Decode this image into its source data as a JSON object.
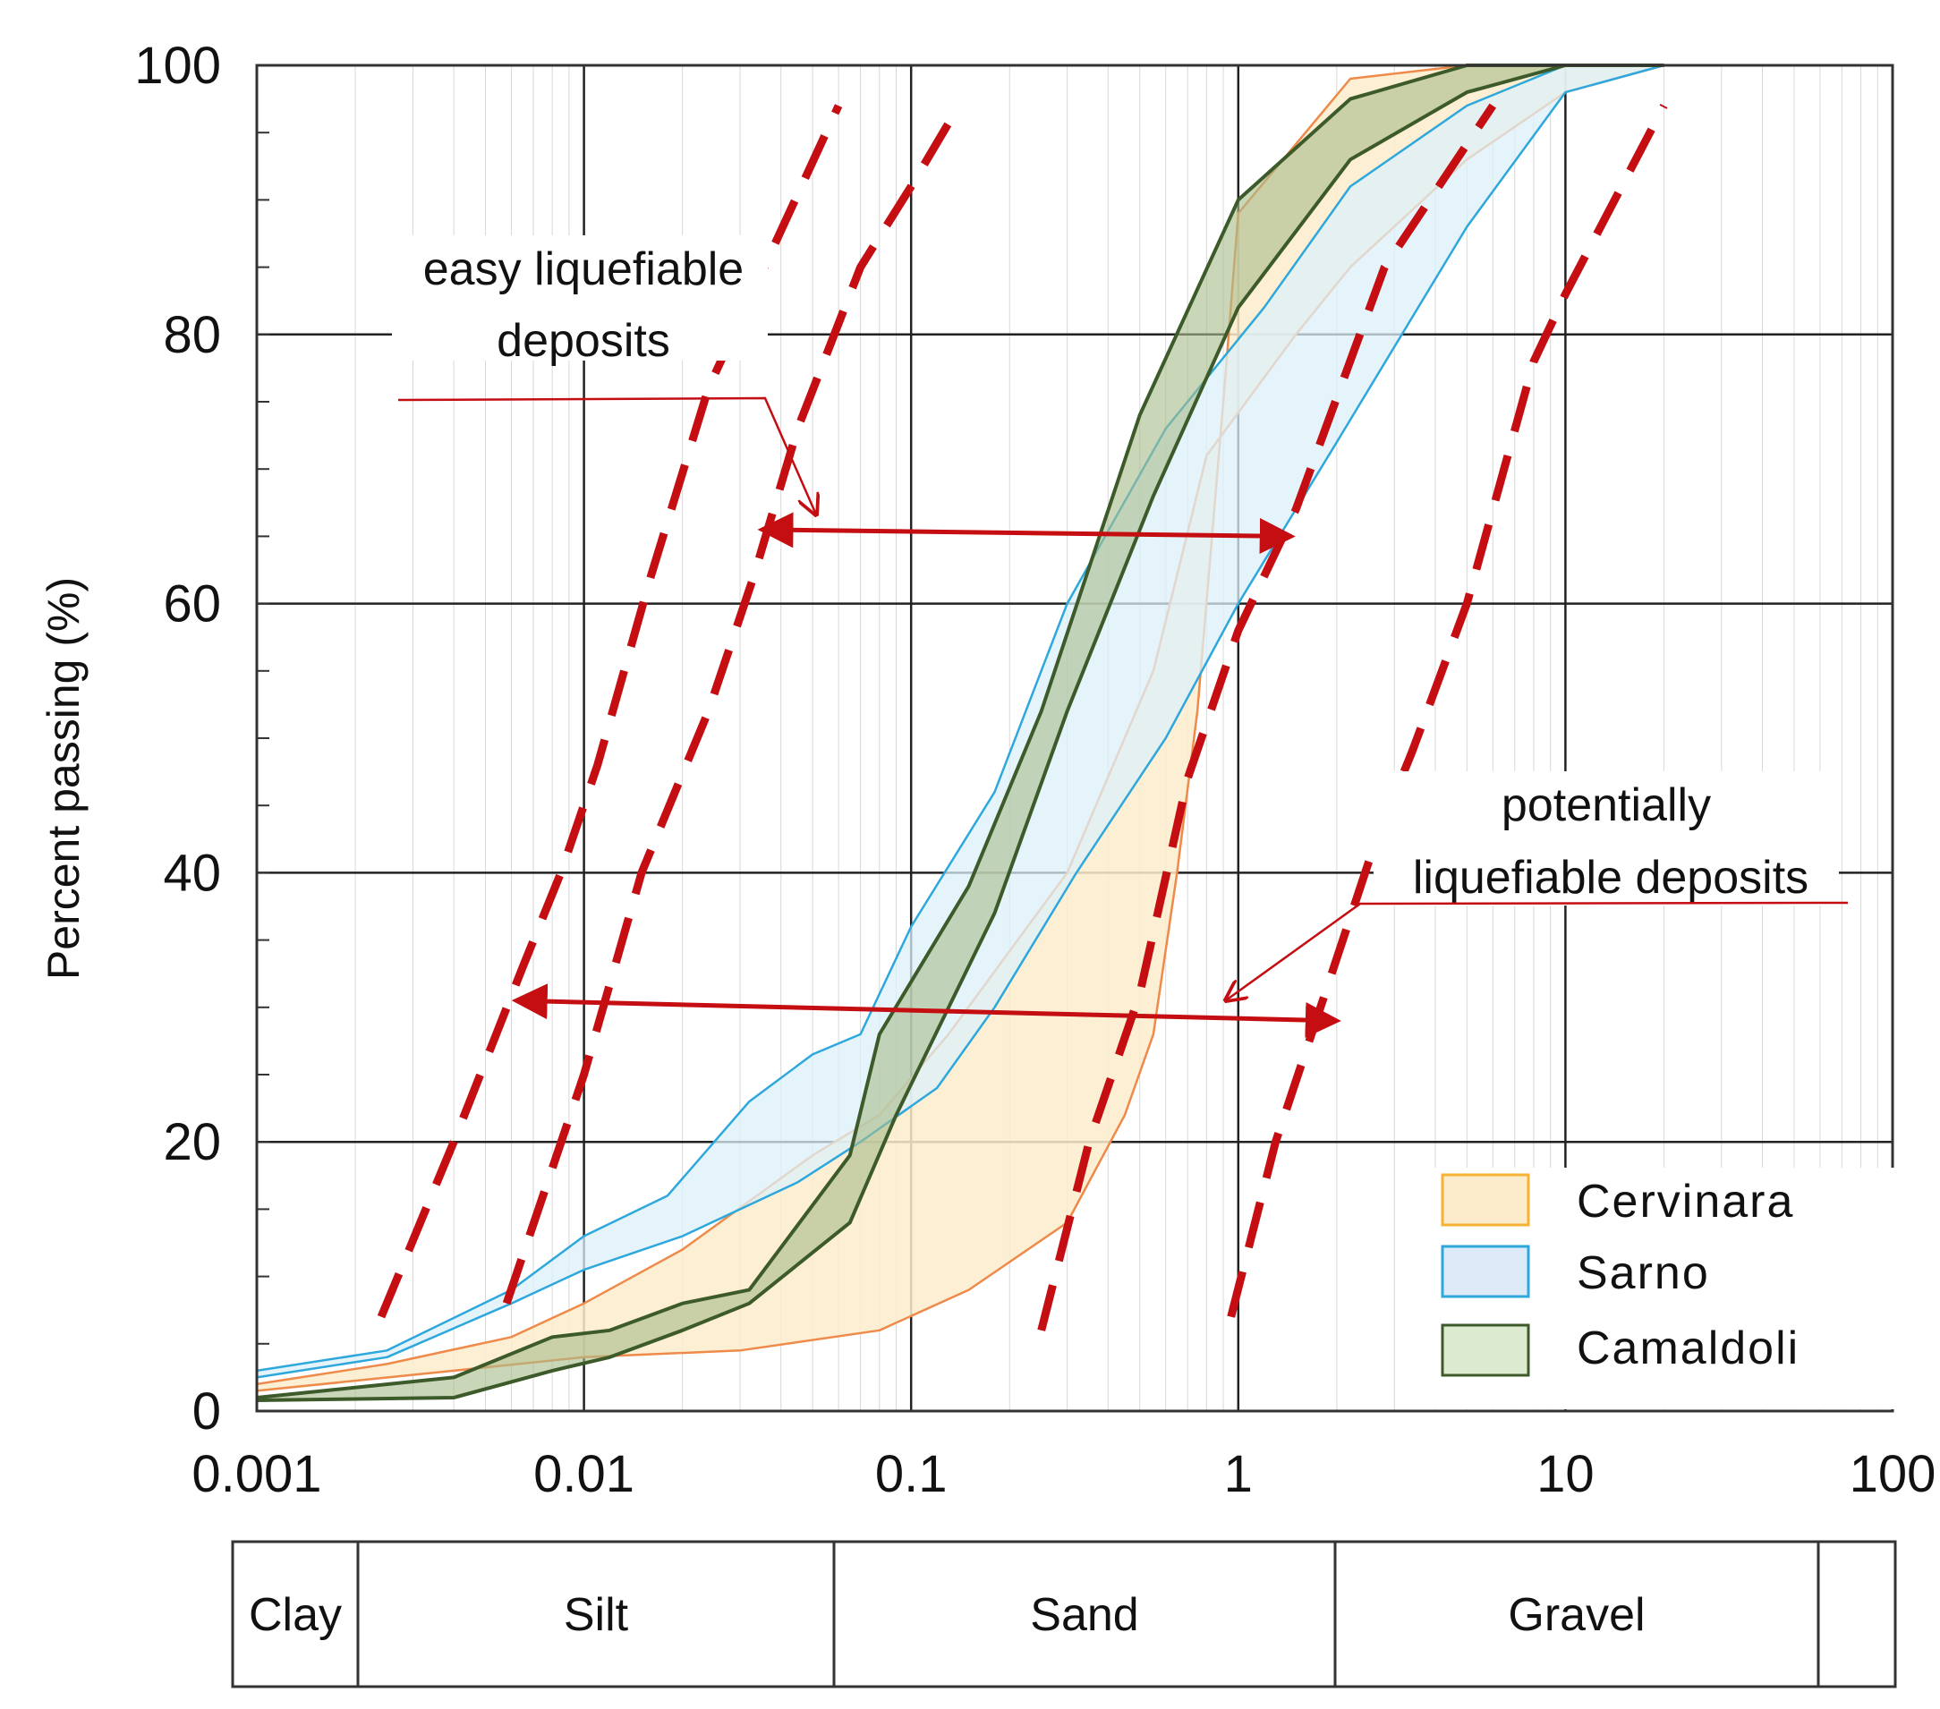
{
  "chart_data": {
    "type": "area",
    "title": "",
    "xlabel": "",
    "ylabel": "Percent  passing  (%)",
    "xscale": "log",
    "xlim": [
      0.001,
      100
    ],
    "ylim": [
      0,
      100
    ],
    "x_ticks": [
      "0.001",
      "0.01",
      "0.1",
      "1",
      "10",
      "100"
    ],
    "y_ticks": [
      "0",
      "20",
      "40",
      "60",
      "80",
      "100"
    ],
    "grid": true,
    "legend_position": "bottom-right",
    "colors": {
      "cervinara_line": "#ee8a4a",
      "cervinara_fill": "#fdeccb",
      "sarno_line": "#2ea8dc",
      "sarno_fill": "#dcf0fa",
      "camaldoli_line": "#3d5b2a",
      "camaldoli_fill": "#a9bd8c",
      "boundary": "#c40e12",
      "arrow": "#c40e12"
    },
    "series": [
      {
        "name": "Cervinara",
        "fine_edge": [
          [
            0.001,
            2
          ],
          [
            0.0025,
            3.5
          ],
          [
            0.006,
            5.5
          ],
          [
            0.01,
            8
          ],
          [
            0.02,
            12
          ],
          [
            0.05,
            19
          ],
          [
            0.08,
            22
          ],
          [
            0.13,
            28
          ],
          [
            0.3,
            40
          ],
          [
            0.55,
            55
          ],
          [
            0.8,
            71
          ],
          [
            1.5,
            80
          ],
          [
            2.2,
            85
          ],
          [
            5,
            93
          ],
          [
            10,
            98
          ],
          [
            20,
            100
          ]
        ],
        "coarse_edge": [
          [
            0.001,
            1.5
          ],
          [
            0.004,
            3
          ],
          [
            0.01,
            4
          ],
          [
            0.03,
            4.5
          ],
          [
            0.08,
            6
          ],
          [
            0.15,
            9
          ],
          [
            0.3,
            14
          ],
          [
            0.45,
            22
          ],
          [
            0.55,
            28
          ],
          [
            0.65,
            40
          ],
          [
            0.75,
            52
          ],
          [
            0.9,
            75
          ],
          [
            1.0,
            89
          ],
          [
            2.2,
            99
          ],
          [
            5,
            100
          ],
          [
            20,
            100
          ]
        ]
      },
      {
        "name": "Sarno",
        "fine_edge": [
          [
            0.001,
            3
          ],
          [
            0.0025,
            4.5
          ],
          [
            0.006,
            9
          ],
          [
            0.01,
            13
          ],
          [
            0.018,
            16
          ],
          [
            0.032,
            23
          ],
          [
            0.05,
            26.5
          ],
          [
            0.07,
            28
          ],
          [
            0.1,
            36
          ],
          [
            0.18,
            46
          ],
          [
            0.3,
            60
          ],
          [
            0.6,
            73
          ],
          [
            1.2,
            82
          ],
          [
            2.2,
            91
          ],
          [
            5,
            97
          ],
          [
            10,
            100
          ],
          [
            20,
            100
          ]
        ],
        "coarse_edge": [
          [
            0.001,
            2.5
          ],
          [
            0.0025,
            4
          ],
          [
            0.006,
            8
          ],
          [
            0.01,
            10.5
          ],
          [
            0.02,
            13
          ],
          [
            0.045,
            17
          ],
          [
            0.07,
            20
          ],
          [
            0.12,
            24
          ],
          [
            0.18,
            30
          ],
          [
            0.32,
            40
          ],
          [
            0.6,
            50
          ],
          [
            1,
            60
          ],
          [
            2,
            72
          ],
          [
            5,
            88
          ],
          [
            10,
            98
          ],
          [
            20,
            100
          ]
        ]
      },
      {
        "name": "Camaldoli",
        "fine_edge": [
          [
            0.001,
            1
          ],
          [
            0.004,
            2.5
          ],
          [
            0.008,
            5.5
          ],
          [
            0.012,
            6
          ],
          [
            0.02,
            8
          ],
          [
            0.032,
            9
          ],
          [
            0.065,
            19
          ],
          [
            0.08,
            28
          ],
          [
            0.15,
            39
          ],
          [
            0.25,
            52
          ],
          [
            0.5,
            74
          ],
          [
            1,
            90
          ],
          [
            2.2,
            97.5
          ],
          [
            5,
            100
          ],
          [
            20,
            100
          ]
        ],
        "coarse_edge": [
          [
            0.001,
            0.8
          ],
          [
            0.004,
            1
          ],
          [
            0.008,
            3
          ],
          [
            0.012,
            4
          ],
          [
            0.02,
            6
          ],
          [
            0.032,
            8
          ],
          [
            0.065,
            14
          ],
          [
            0.09,
            22
          ],
          [
            0.18,
            37
          ],
          [
            0.3,
            52
          ],
          [
            0.55,
            68
          ],
          [
            1,
            82
          ],
          [
            2.2,
            93
          ],
          [
            5,
            98
          ],
          [
            10,
            100
          ],
          [
            20,
            100
          ]
        ]
      }
    ],
    "boundaries": [
      {
        "name": "easy-fine",
        "points": [
          [
            0.0024,
            7
          ],
          [
            0.004,
            20
          ],
          [
            0.0065,
            33
          ],
          [
            0.0085,
            40
          ],
          [
            0.011,
            48
          ],
          [
            0.016,
            62
          ],
          [
            0.024,
            76
          ],
          [
            0.06,
            97
          ]
        ]
      },
      {
        "name": "easy-coarse",
        "points": [
          [
            0.0058,
            8
          ],
          [
            0.01,
            25
          ],
          [
            0.015,
            40
          ],
          [
            0.024,
            52
          ],
          [
            0.033,
            62
          ],
          [
            0.045,
            73
          ],
          [
            0.07,
            85
          ],
          [
            0.1,
            91
          ],
          [
            0.14,
            97
          ]
        ]
      },
      {
        "name": "potential-fine",
        "points": [
          [
            0.25,
            6
          ],
          [
            0.35,
            20
          ],
          [
            0.5,
            31
          ],
          [
            0.7,
            47
          ],
          [
            1,
            58
          ],
          [
            1.5,
            67
          ],
          [
            2.8,
            85
          ],
          [
            6,
            97
          ]
        ]
      },
      {
        "name": "potential-coarse",
        "points": [
          [
            0.95,
            7
          ],
          [
            1.3,
            20
          ],
          [
            1.9,
            32
          ],
          [
            2.6,
            42
          ],
          [
            3.4,
            49
          ],
          [
            5,
            60
          ],
          [
            8,
            78
          ],
          [
            10,
            83
          ],
          [
            20,
            97
          ]
        ]
      }
    ],
    "arrows": [
      {
        "from": [
          0.035,
          65.5
        ],
        "to": [
          1.45,
          65
        ]
      },
      {
        "from": [
          0.0062,
          30.5
        ],
        "to": [
          2.0,
          29
        ]
      }
    ],
    "annotations": [
      {
        "id": "easy",
        "lines": [
          "easy liquefiable",
          "deposits"
        ]
      },
      {
        "id": "potential",
        "lines": [
          "potentially",
          "liquefiable deposits"
        ]
      }
    ],
    "grain_classes": [
      "Clay",
      "Silt",
      "Sand",
      "Gravel",
      ""
    ]
  }
}
